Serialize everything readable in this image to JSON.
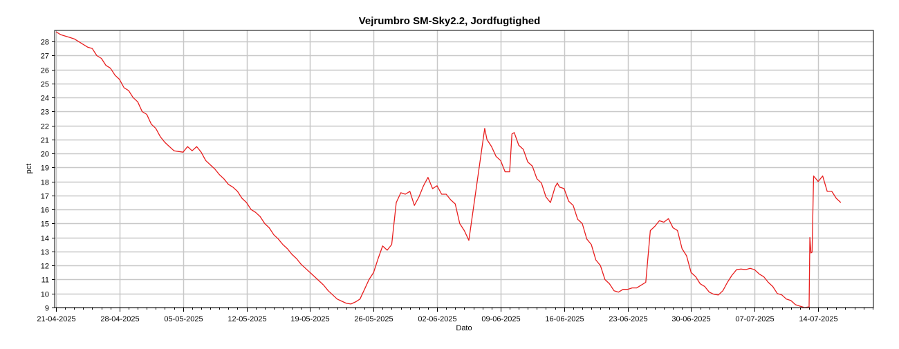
{
  "chart_data": {
    "type": "line",
    "title": "Vejrumbro SM-Sky2.2, Jordfugtighed",
    "xlabel": "Dato",
    "ylabel": "pct",
    "x_start": "21-04-2025",
    "x_end": "22-07-2025",
    "ylim": [
      9,
      28.8
    ],
    "yticks": [
      9,
      10,
      11,
      12,
      13,
      14,
      15,
      16,
      17,
      18,
      19,
      20,
      21,
      22,
      23,
      24,
      25,
      26,
      27,
      28
    ],
    "xticks": [
      "21-04-2025",
      "28-04-2025",
      "05-05-2025",
      "12-05-2025",
      "19-05-2025",
      "26-05-2025",
      "02-06-2025",
      "09-06-2025",
      "16-06-2025",
      "23-06-2025",
      "30-06-2025",
      "07-07-2025",
      "14-07-2025"
    ],
    "grid": true,
    "legend": "none",
    "series": [
      {
        "color": "#e81e1e",
        "points": [
          [
            "2025-04-21",
            28.7
          ],
          [
            "2025-04-21 12:00",
            28.5
          ],
          [
            "2025-04-22",
            28.4
          ],
          [
            "2025-04-22 12:00",
            28.3
          ],
          [
            "2025-04-23",
            28.2
          ],
          [
            "2025-04-23 12:00",
            28.0
          ],
          [
            "2025-04-24",
            27.8
          ],
          [
            "2025-04-24 12:00",
            27.6
          ],
          [
            "2025-04-25",
            27.5
          ],
          [
            "2025-04-25 12:00",
            27.0
          ],
          [
            "2025-04-26",
            26.8
          ],
          [
            "2025-04-26 12:00",
            26.3
          ],
          [
            "2025-04-27",
            26.1
          ],
          [
            "2025-04-27 12:00",
            25.6
          ],
          [
            "2025-04-28",
            25.3
          ],
          [
            "2025-04-28 12:00",
            24.7
          ],
          [
            "2025-04-29",
            24.5
          ],
          [
            "2025-04-29 12:00",
            24.0
          ],
          [
            "2025-04-30",
            23.7
          ],
          [
            "2025-04-30 12:00",
            23.0
          ],
          [
            "2025-05-01",
            22.8
          ],
          [
            "2025-05-01 12:00",
            22.1
          ],
          [
            "2025-05-02",
            21.8
          ],
          [
            "2025-05-02 12:00",
            21.2
          ],
          [
            "2025-05-03",
            20.8
          ],
          [
            "2025-05-03 12:00",
            20.5
          ],
          [
            "2025-05-04",
            20.2
          ],
          [
            "2025-05-04 12:00",
            20.15
          ],
          [
            "2025-05-05",
            20.1
          ],
          [
            "2025-05-05 12:00",
            20.5
          ],
          [
            "2025-05-06",
            20.2
          ],
          [
            "2025-05-06 12:00",
            20.5
          ],
          [
            "2025-05-07",
            20.1
          ],
          [
            "2025-05-07 12:00",
            19.5
          ],
          [
            "2025-05-08",
            19.2
          ],
          [
            "2025-05-08 12:00",
            18.9
          ],
          [
            "2025-05-09",
            18.5
          ],
          [
            "2025-05-09 12:00",
            18.2
          ],
          [
            "2025-05-10",
            17.8
          ],
          [
            "2025-05-10 12:00",
            17.6
          ],
          [
            "2025-05-11",
            17.3
          ],
          [
            "2025-05-11 12:00",
            16.8
          ],
          [
            "2025-05-12",
            16.5
          ],
          [
            "2025-05-12 12:00",
            16.0
          ],
          [
            "2025-05-13",
            15.8
          ],
          [
            "2025-05-13 12:00",
            15.5
          ],
          [
            "2025-05-14",
            15.0
          ],
          [
            "2025-05-14 12:00",
            14.7
          ],
          [
            "2025-05-15",
            14.2
          ],
          [
            "2025-05-15 12:00",
            13.9
          ],
          [
            "2025-05-16",
            13.5
          ],
          [
            "2025-05-16 12:00",
            13.2
          ],
          [
            "2025-05-17",
            12.8
          ],
          [
            "2025-05-17 12:00",
            12.5
          ],
          [
            "2025-05-18",
            12.1
          ],
          [
            "2025-05-18 12:00",
            11.8
          ],
          [
            "2025-05-19",
            11.5
          ],
          [
            "2025-05-19 12:00",
            11.2
          ],
          [
            "2025-05-20",
            10.9
          ],
          [
            "2025-05-20 12:00",
            10.6
          ],
          [
            "2025-05-21",
            10.2
          ],
          [
            "2025-05-21 12:00",
            9.9
          ],
          [
            "2025-05-22",
            9.6
          ],
          [
            "2025-05-22 12:00",
            9.45
          ],
          [
            "2025-05-23",
            9.3
          ],
          [
            "2025-05-23 12:00",
            9.25
          ],
          [
            "2025-05-24",
            9.4
          ],
          [
            "2025-05-24 12:00",
            9.6
          ],
          [
            "2025-05-25",
            10.3
          ],
          [
            "2025-05-25 12:00",
            11.0
          ],
          [
            "2025-05-26",
            11.5
          ],
          [
            "2025-05-26 12:00",
            12.5
          ],
          [
            "2025-05-27",
            13.4
          ],
          [
            "2025-05-27 12:00",
            13.1
          ],
          [
            "2025-05-28",
            13.5
          ],
          [
            "2025-05-28 12:00",
            16.5
          ],
          [
            "2025-05-29",
            17.2
          ],
          [
            "2025-05-29 12:00",
            17.1
          ],
          [
            "2025-05-30",
            17.3
          ],
          [
            "2025-05-30 12:00",
            16.3
          ],
          [
            "2025-05-31",
            16.9
          ],
          [
            "2025-05-31 12:00",
            17.7
          ],
          [
            "2025-06-01",
            18.3
          ],
          [
            "2025-06-01 12:00",
            17.5
          ],
          [
            "2025-06-02",
            17.7
          ],
          [
            "2025-06-02 12:00",
            17.1
          ],
          [
            "2025-06-03",
            17.1
          ],
          [
            "2025-06-03 12:00",
            16.7
          ],
          [
            "2025-06-04",
            16.4
          ],
          [
            "2025-06-04 12:00",
            15.0
          ],
          [
            "2025-06-05",
            14.5
          ],
          [
            "2025-06-05 12:00",
            13.8
          ],
          [
            "2025-06-07 06:00",
            21.8
          ],
          [
            "2025-06-07 12:00",
            21.0
          ],
          [
            "2025-06-08",
            20.5
          ],
          [
            "2025-06-08 12:00",
            19.8
          ],
          [
            "2025-06-09",
            19.5
          ],
          [
            "2025-06-09 12:00",
            18.7
          ],
          [
            "2025-06-10",
            18.7
          ],
          [
            "2025-06-10 06:00",
            21.4
          ],
          [
            "2025-06-10 12:00",
            21.5
          ],
          [
            "2025-06-11",
            20.6
          ],
          [
            "2025-06-11 12:00",
            20.3
          ],
          [
            "2025-06-12",
            19.4
          ],
          [
            "2025-06-12 12:00",
            19.1
          ],
          [
            "2025-06-13",
            18.2
          ],
          [
            "2025-06-13 12:00",
            17.9
          ],
          [
            "2025-06-14",
            16.9
          ],
          [
            "2025-06-14 12:00",
            16.5
          ],
          [
            "2025-06-15",
            17.6
          ],
          [
            "2025-06-15 06:00",
            17.9
          ],
          [
            "2025-06-15 12:00",
            17.6
          ],
          [
            "2025-06-16",
            17.5
          ],
          [
            "2025-06-16 12:00",
            16.6
          ],
          [
            "2025-06-17",
            16.3
          ],
          [
            "2025-06-17 12:00",
            15.3
          ],
          [
            "2025-06-18",
            15.0
          ],
          [
            "2025-06-18 12:00",
            13.9
          ],
          [
            "2025-06-19",
            13.5
          ],
          [
            "2025-06-19 12:00",
            12.4
          ],
          [
            "2025-06-20",
            12.0
          ],
          [
            "2025-06-20 12:00",
            11.0
          ],
          [
            "2025-06-21",
            10.7
          ],
          [
            "2025-06-21 12:00",
            10.2
          ],
          [
            "2025-06-22",
            10.1
          ],
          [
            "2025-06-22 12:00",
            10.3
          ],
          [
            "2025-06-23",
            10.3
          ],
          [
            "2025-06-23 12:00",
            10.4
          ],
          [
            "2025-06-24",
            10.4
          ],
          [
            "2025-06-24 12:00",
            10.6
          ],
          [
            "2025-06-25",
            10.8
          ],
          [
            "2025-06-25 12:00",
            14.5
          ],
          [
            "2025-06-26",
            14.8
          ],
          [
            "2025-06-26 12:00",
            15.2
          ],
          [
            "2025-06-27",
            15.1
          ],
          [
            "2025-06-27 12:00",
            15.35
          ],
          [
            "2025-06-28",
            14.7
          ],
          [
            "2025-06-28 12:00",
            14.5
          ],
          [
            "2025-06-29",
            13.2
          ],
          [
            "2025-06-29 12:00",
            12.7
          ],
          [
            "2025-06-30",
            11.5
          ],
          [
            "2025-06-30 12:00",
            11.2
          ],
          [
            "2025-07-01",
            10.7
          ],
          [
            "2025-07-01 12:00",
            10.5
          ],
          [
            "2025-07-02",
            10.1
          ],
          [
            "2025-07-02 12:00",
            9.95
          ],
          [
            "2025-07-03",
            9.9
          ],
          [
            "2025-07-03 12:00",
            10.2
          ],
          [
            "2025-07-04",
            10.8
          ],
          [
            "2025-07-04 12:00",
            11.3
          ],
          [
            "2025-07-05",
            11.7
          ],
          [
            "2025-07-05 12:00",
            11.75
          ],
          [
            "2025-07-06",
            11.7
          ],
          [
            "2025-07-06 12:00",
            11.8
          ],
          [
            "2025-07-07",
            11.7
          ],
          [
            "2025-07-07 12:00",
            11.4
          ],
          [
            "2025-07-08",
            11.2
          ],
          [
            "2025-07-08 12:00",
            10.8
          ],
          [
            "2025-07-09",
            10.5
          ],
          [
            "2025-07-09 12:00",
            10.0
          ],
          [
            "2025-07-10",
            9.9
          ],
          [
            "2025-07-10 12:00",
            9.6
          ],
          [
            "2025-07-11",
            9.5
          ],
          [
            "2025-07-11 12:00",
            9.2
          ],
          [
            "2025-07-12",
            9.1
          ],
          [
            "2025-07-12 12:00",
            9.0
          ],
          [
            "2025-07-13",
            9.05
          ],
          [
            "2025-07-13 02:00",
            14.0
          ],
          [
            "2025-07-13 05:00",
            12.9
          ],
          [
            "2025-07-13 08:00",
            12.95
          ],
          [
            "2025-07-13 12:00",
            18.4
          ],
          [
            "2025-07-14",
            18.0
          ],
          [
            "2025-07-14 12:00",
            18.4
          ],
          [
            "2025-07-15",
            17.3
          ],
          [
            "2025-07-15 12:00",
            17.3
          ],
          [
            "2025-07-16",
            16.8
          ],
          [
            "2025-07-16 12:00",
            16.5
          ]
        ]
      }
    ]
  }
}
